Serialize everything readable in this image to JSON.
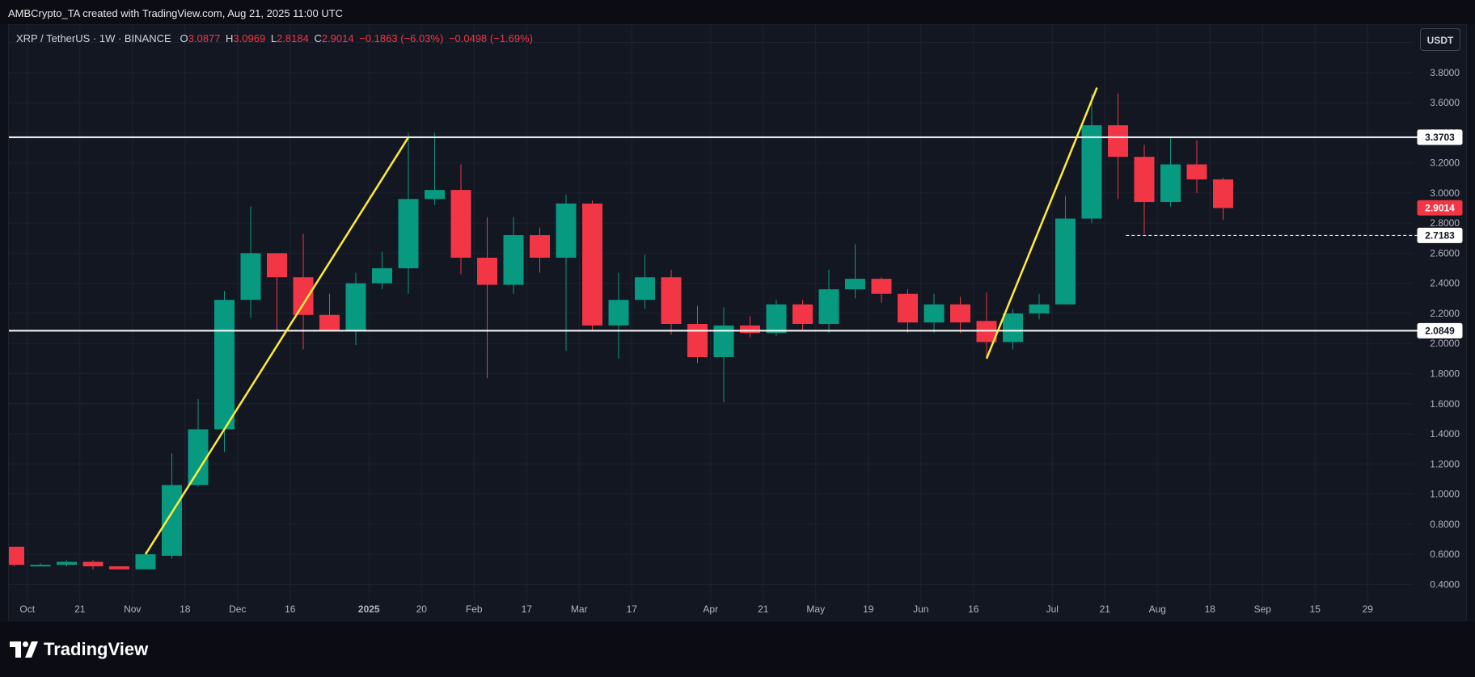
{
  "header": {
    "attribution": "AMBCrypto_TA created with TradingView.com, Aug 21, 2025 11:00 UTC"
  },
  "legend": {
    "symbol": "XRP / TetherUS · 1W · BINANCE",
    "open_label": "O",
    "open": "3.0877",
    "high_label": "H",
    "high": "3.0969",
    "low_label": "L",
    "low": "2.8184",
    "close_label": "C",
    "close": "2.9014",
    "change": "−0.1863 (−6.03%)",
    "change2": "−0.0498 (−1.69%)"
  },
  "currency_button": {
    "label": "USDT"
  },
  "brand": {
    "name": "TradingView"
  },
  "colors": {
    "up": "#089981",
    "down": "#f23645",
    "trendline": "#ffeb3b",
    "level": "#ffffff",
    "grid": "#1e2230",
    "background": "#131722"
  },
  "chart_data": {
    "type": "candlestick",
    "timeframe": "1W",
    "y_range": [
      0.3,
      3.96
    ],
    "y_ticks": [
      "0.4000",
      "0.6000",
      "0.8000",
      "1.0000",
      "1.2000",
      "1.4000",
      "1.6000",
      "1.8000",
      "2.0000",
      "2.2000",
      "2.4000",
      "2.6000",
      "2.8000",
      "3.0000",
      "3.2000",
      "3.4000",
      "3.6000",
      "3.8000",
      "4.0000"
    ],
    "x_ticks": [
      {
        "label": "Oct",
        "i": 0.5,
        "bold": false
      },
      {
        "label": "21",
        "i": 2.5,
        "bold": false
      },
      {
        "label": "Nov",
        "i": 4.5,
        "bold": false
      },
      {
        "label": "18",
        "i": 6.5,
        "bold": false
      },
      {
        "label": "Dec",
        "i": 8.5,
        "bold": false
      },
      {
        "label": "16",
        "i": 10.5,
        "bold": false
      },
      {
        "label": "2025",
        "i": 13.5,
        "bold": true
      },
      {
        "label": "20",
        "i": 15.5,
        "bold": false
      },
      {
        "label": "Feb",
        "i": 17.5,
        "bold": false
      },
      {
        "label": "17",
        "i": 19.5,
        "bold": false
      },
      {
        "label": "Mar",
        "i": 21.5,
        "bold": false
      },
      {
        "label": "17",
        "i": 23.5,
        "bold": false
      },
      {
        "label": "Apr",
        "i": 26.5,
        "bold": false
      },
      {
        "label": "21",
        "i": 28.5,
        "bold": false
      },
      {
        "label": "May",
        "i": 30.5,
        "bold": false
      },
      {
        "label": "19",
        "i": 32.5,
        "bold": false
      },
      {
        "label": "Jun",
        "i": 34.5,
        "bold": false
      },
      {
        "label": "16",
        "i": 36.5,
        "bold": false
      },
      {
        "label": "Jul",
        "i": 39.5,
        "bold": false
      },
      {
        "label": "21",
        "i": 41.5,
        "bold": false
      },
      {
        "label": "Aug",
        "i": 43.5,
        "bold": false
      },
      {
        "label": "18",
        "i": 45.5,
        "bold": false
      },
      {
        "label": "Sep",
        "i": 47.5,
        "bold": false
      },
      {
        "label": "15",
        "i": 49.5,
        "bold": false
      },
      {
        "label": "29",
        "i": 51.5,
        "bold": false
      }
    ],
    "candles": [
      {
        "o": 0.65,
        "h": 0.65,
        "l": 0.52,
        "c": 0.53
      },
      {
        "o": 0.53,
        "h": 0.54,
        "l": 0.52,
        "c": 0.53
      },
      {
        "o": 0.53,
        "h": 0.56,
        "l": 0.52,
        "c": 0.55
      },
      {
        "o": 0.55,
        "h": 0.56,
        "l": 0.5,
        "c": 0.52
      },
      {
        "o": 0.52,
        "h": 0.52,
        "l": 0.5,
        "c": 0.5
      },
      {
        "o": 0.5,
        "h": 0.62,
        "l": 0.5,
        "c": 0.6
      },
      {
        "o": 0.59,
        "h": 1.27,
        "l": 0.57,
        "c": 1.06
      },
      {
        "o": 1.06,
        "h": 1.63,
        "l": 1.05,
        "c": 1.43
      },
      {
        "o": 1.43,
        "h": 2.35,
        "l": 1.28,
        "c": 2.29
      },
      {
        "o": 2.29,
        "h": 2.91,
        "l": 2.17,
        "c": 2.6
      },
      {
        "o": 2.6,
        "h": 2.6,
        "l": 2.09,
        "c": 2.44
      },
      {
        "o": 2.44,
        "h": 2.73,
        "l": 1.96,
        "c": 2.19
      },
      {
        "o": 2.19,
        "h": 2.33,
        "l": 2.08,
        "c": 2.09
      },
      {
        "o": 2.09,
        "h": 2.47,
        "l": 1.99,
        "c": 2.4
      },
      {
        "o": 2.4,
        "h": 2.61,
        "l": 2.36,
        "c": 2.5
      },
      {
        "o": 2.5,
        "h": 3.4,
        "l": 2.33,
        "c": 2.96
      },
      {
        "o": 2.96,
        "h": 3.4,
        "l": 2.92,
        "c": 3.02
      },
      {
        "o": 3.02,
        "h": 3.19,
        "l": 2.46,
        "c": 2.57
      },
      {
        "o": 2.57,
        "h": 2.84,
        "l": 1.77,
        "c": 2.39
      },
      {
        "o": 2.39,
        "h": 2.84,
        "l": 2.33,
        "c": 2.72
      },
      {
        "o": 2.72,
        "h": 2.77,
        "l": 2.47,
        "c": 2.57
      },
      {
        "o": 2.57,
        "h": 2.99,
        "l": 1.95,
        "c": 2.93
      },
      {
        "o": 2.93,
        "h": 2.95,
        "l": 2.09,
        "c": 2.12
      },
      {
        "o": 2.12,
        "h": 2.47,
        "l": 1.9,
        "c": 2.29
      },
      {
        "o": 2.29,
        "h": 2.59,
        "l": 2.23,
        "c": 2.44
      },
      {
        "o": 2.44,
        "h": 2.49,
        "l": 2.06,
        "c": 2.13
      },
      {
        "o": 2.13,
        "h": 2.25,
        "l": 1.87,
        "c": 1.91
      },
      {
        "o": 1.91,
        "h": 2.24,
        "l": 1.61,
        "c": 2.12
      },
      {
        "o": 2.12,
        "h": 2.18,
        "l": 2.04,
        "c": 2.07
      },
      {
        "o": 2.07,
        "h": 2.29,
        "l": 2.05,
        "c": 2.26
      },
      {
        "o": 2.26,
        "h": 2.29,
        "l": 2.09,
        "c": 2.13
      },
      {
        "o": 2.13,
        "h": 2.49,
        "l": 2.07,
        "c": 2.36
      },
      {
        "o": 2.36,
        "h": 2.66,
        "l": 2.3,
        "c": 2.43
      },
      {
        "o": 2.43,
        "h": 2.44,
        "l": 2.27,
        "c": 2.33
      },
      {
        "o": 2.33,
        "h": 2.36,
        "l": 2.07,
        "c": 2.14
      },
      {
        "o": 2.14,
        "h": 2.33,
        "l": 2.07,
        "c": 2.26
      },
      {
        "o": 2.26,
        "h": 2.31,
        "l": 2.07,
        "c": 2.14
      },
      {
        "o": 2.15,
        "h": 2.34,
        "l": 1.91,
        "c": 2.01
      },
      {
        "o": 2.01,
        "h": 2.23,
        "l": 1.96,
        "c": 2.2
      },
      {
        "o": 2.2,
        "h": 2.33,
        "l": 2.16,
        "c": 2.26
      },
      {
        "o": 2.26,
        "h": 2.98,
        "l": 2.26,
        "c": 2.83
      },
      {
        "o": 2.83,
        "h": 3.66,
        "l": 2.8,
        "c": 3.45
      },
      {
        "o": 3.45,
        "h": 3.66,
        "l": 2.96,
        "c": 3.24
      },
      {
        "o": 3.24,
        "h": 3.32,
        "l": 2.73,
        "c": 2.94
      },
      {
        "o": 2.94,
        "h": 3.38,
        "l": 2.91,
        "c": 3.19
      },
      {
        "o": 3.19,
        "h": 3.35,
        "l": 3.0,
        "c": 3.09
      },
      {
        "o": 3.09,
        "h": 3.1,
        "l": 2.82,
        "c": 2.9
      }
    ],
    "levels": [
      {
        "value": 3.3703,
        "label": "3.3703",
        "style": "solid"
      },
      {
        "value": 2.0849,
        "label": "2.0849",
        "style": "solid"
      }
    ],
    "dashed_level": {
      "value": 2.7183,
      "label": "2.7183",
      "from_i": 42.3
    },
    "current_price": {
      "value": 2.9014,
      "label": "2.9014"
    },
    "trendlines": [
      {
        "i1": 5.0,
        "p1": 0.6,
        "i2": 15.0,
        "p2": 3.37
      },
      {
        "i1": 37.0,
        "p1": 1.9,
        "i2": 41.2,
        "p2": 3.7
      }
    ]
  }
}
